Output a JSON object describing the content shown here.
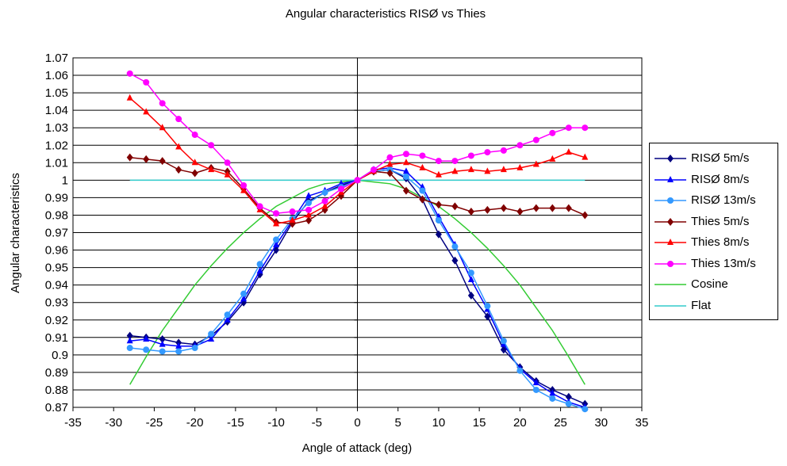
{
  "chart_data": {
    "type": "line",
    "title": "Angular characteristics RISØ vs Thies",
    "xlabel": "Angle of attack (deg)",
    "ylabel": "Angular characteristics",
    "xlim": [
      -35,
      35
    ],
    "ylim": [
      0.87,
      1.07
    ],
    "xticks": [
      -35,
      -30,
      -25,
      -20,
      -15,
      -10,
      -5,
      0,
      5,
      10,
      15,
      20,
      25,
      30,
      35
    ],
    "yticks": [
      0.87,
      0.88,
      0.89,
      0.9,
      0.91,
      0.92,
      0.93,
      0.94,
      0.95,
      0.96,
      0.97,
      0.98,
      0.99,
      1,
      1.01,
      1.02,
      1.03,
      1.04,
      1.05,
      1.06,
      1.07
    ],
    "x_tick_labels": [
      "-35",
      "-30",
      "-25",
      "-20",
      "-15",
      "-10",
      "-5",
      "0",
      "5",
      "10",
      "15",
      "20",
      "25",
      "30",
      "35"
    ],
    "y_tick_labels": [
      "0.87",
      "0.88",
      "0.89",
      "0.9",
      "0.91",
      "0.92",
      "0.93",
      "0.94",
      "0.95",
      "0.96",
      "0.97",
      "0.98",
      "0.99",
      "1",
      "1.01",
      "1.02",
      "1.03",
      "1.04",
      "1.05",
      "1.06",
      "1.07"
    ],
    "grid": "horizontal",
    "legend_position": "right",
    "x": [
      -28,
      -26,
      -24,
      -22,
      -20,
      -18,
      -16,
      -14,
      -12,
      -10,
      -8,
      -6,
      -4,
      -2,
      0,
      2,
      4,
      6,
      8,
      10,
      12,
      14,
      16,
      18,
      20,
      22,
      24,
      26,
      28
    ],
    "series": [
      {
        "name": "RISØ 5m/s",
        "color": "#000080",
        "marker": "diamond",
        "values": [
          0.911,
          0.91,
          0.909,
          0.907,
          0.906,
          0.911,
          0.919,
          0.93,
          0.946,
          0.96,
          0.976,
          0.988,
          0.993,
          0.997,
          1.0,
          1.005,
          1.006,
          1.001,
          0.989,
          0.969,
          0.954,
          0.934,
          0.922,
          0.903,
          0.893,
          0.885,
          0.88,
          0.876,
          0.872
        ]
      },
      {
        "name": "RISØ 8m/s",
        "color": "#0000ff",
        "marker": "triangle",
        "values": [
          0.908,
          0.909,
          0.906,
          0.905,
          0.905,
          0.909,
          0.92,
          0.932,
          0.948,
          0.963,
          0.977,
          0.991,
          0.994,
          0.998,
          1.0,
          1.006,
          1.007,
          1.005,
          0.996,
          0.979,
          0.963,
          0.943,
          0.926,
          0.906,
          0.892,
          0.884,
          0.878,
          0.873,
          0.87
        ]
      },
      {
        "name": "RISØ 13m/s",
        "color": "#3399ff",
        "marker": "circle",
        "values": [
          0.904,
          0.903,
          0.902,
          0.902,
          0.904,
          0.912,
          0.923,
          0.935,
          0.952,
          0.966,
          0.978,
          0.987,
          0.993,
          0.996,
          1.0,
          1.005,
          1.006,
          1.002,
          0.994,
          0.977,
          0.962,
          0.947,
          0.928,
          0.908,
          0.891,
          0.88,
          0.875,
          0.872,
          0.869
        ]
      },
      {
        "name": "Thies 5m/s",
        "color": "#800000",
        "marker": "diamond",
        "values": [
          1.013,
          1.012,
          1.011,
          1.006,
          1.004,
          1.007,
          1.005,
          0.995,
          0.984,
          0.976,
          0.975,
          0.977,
          0.983,
          0.991,
          1.0,
          1.005,
          1.004,
          0.994,
          0.989,
          0.986,
          0.985,
          0.982,
          0.983,
          0.984,
          0.982,
          0.984,
          0.984,
          0.984,
          0.98
        ]
      },
      {
        "name": "Thies 8m/s",
        "color": "#ff0000",
        "marker": "triangle",
        "values": [
          1.047,
          1.039,
          1.03,
          1.019,
          1.01,
          1.006,
          1.003,
          0.994,
          0.983,
          0.975,
          0.977,
          0.98,
          0.985,
          0.993,
          1.0,
          1.005,
          1.009,
          1.01,
          1.007,
          1.003,
          1.005,
          1.006,
          1.005,
          1.006,
          1.007,
          1.009,
          1.012,
          1.016,
          1.013
        ]
      },
      {
        "name": "Thies 13m/s",
        "color": "#ff00ff",
        "marker": "circle",
        "values": [
          1.061,
          1.056,
          1.044,
          1.035,
          1.026,
          1.02,
          1.01,
          0.997,
          0.985,
          0.981,
          0.982,
          0.983,
          0.988,
          0.995,
          1.0,
          1.006,
          1.013,
          1.015,
          1.014,
          1.011,
          1.011,
          1.014,
          1.016,
          1.017,
          1.02,
          1.023,
          1.027,
          1.03,
          1.03
        ]
      },
      {
        "name": "Cosine",
        "color": "#33cc33",
        "marker": "none",
        "values": [
          0.883,
          0.899,
          0.914,
          0.927,
          0.94,
          0.951,
          0.961,
          0.97,
          0.978,
          0.985,
          0.99,
          0.995,
          0.998,
          0.999,
          1.0,
          0.999,
          0.998,
          0.995,
          0.99,
          0.985,
          0.978,
          0.97,
          0.961,
          0.951,
          0.94,
          0.927,
          0.914,
          0.899,
          0.883
        ]
      },
      {
        "name": "Flat",
        "color": "#33cccc",
        "marker": "none",
        "values": [
          1,
          1,
          1,
          1,
          1,
          1,
          1,
          1,
          1,
          1,
          1,
          1,
          1,
          1,
          1,
          1,
          1,
          1,
          1,
          1,
          1,
          1,
          1,
          1,
          1,
          1,
          1,
          1,
          1
        ]
      }
    ]
  }
}
